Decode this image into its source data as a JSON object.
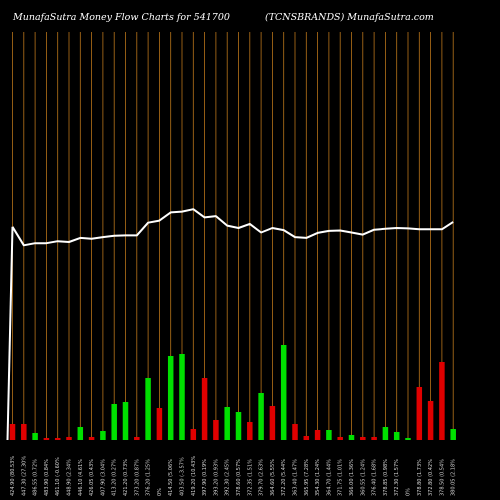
{
  "header": {
    "title_left": "MunafaSutra  Money Flow  Charts for 541700",
    "title_right": "(TCNSBRANDS) MunafaSutra.com"
  },
  "colors": {
    "background": "#000000",
    "grid": "#b8741a",
    "line": "#ffffff",
    "bar_up": "#00e000",
    "bar_down": "#e00000",
    "label": "#d8d8d8"
  },
  "chart_data": {
    "type": "bar",
    "title": "MunafaSutra  Money Flow  Charts for 541700",
    "subtitle": "(TCNSBRANDS) MunafaSutra.com",
    "grid": "vertical",
    "categories": [
      "424.90 (80.53%",
      "447.30 (27.30%",
      "486.55 (0.72%",
      "483.90 (0.84%",
      "461.10 (-0.60%",
      "448.90 (2.34%",
      "446.10 (4.61%",
      "426.05 (0.43%",
      "407.90 (3.04%",
      "413.20 (0.27%",
      "421.20 (0.73%",
      "373.20 (0.87%",
      "376.20 (1.25%",
      "0%",
      "414.50 (5.06%",
      "403.50 (-3.57%",
      "419.20 (10.43%",
      "397.90 (0.19%",
      "393.20 (0.93%",
      "392.30 (2.45%",
      "378.60 (0.57%",
      "372.35 (1.51%",
      "379.70 (2.63%",
      "364.60 (5.55%",
      "372.20 (5.44%",
      "363.40 (1.47%",
      "365.95 (7.28%",
      "354.30 (1.24%",
      "364.70 (1.44%",
      "371.75 (1.01%",
      "366.00 (1.36%",
      "360.55 (1.24%",
      "376.40 (1.68%",
      "378.85 (0.98%",
      "372.30 (1.57%",
      "0%",
      "378.80 (1.73%",
      "372.80 (0.42%",
      "378.50 (0.54%",
      "380.05 (2.18%"
    ],
    "series": [
      {
        "kind": "bar",
        "values": [
          16,
          16,
          7,
          2,
          2,
          3,
          13,
          3,
          9,
          36,
          38,
          3,
          62,
          32,
          84,
          86,
          11,
          62,
          20,
          33,
          28,
          18,
          47,
          34,
          95,
          16,
          4,
          10,
          10,
          3,
          5,
          3,
          3,
          13,
          8,
          2,
          53,
          39,
          78,
          11
        ],
        "directions": [
          "down",
          "down",
          "up",
          "down",
          "down",
          "down",
          "up",
          "down",
          "up",
          "up",
          "up",
          "down",
          "up",
          "down",
          "up",
          "up",
          "down",
          "down",
          "down",
          "up",
          "up",
          "down",
          "up",
          "down",
          "up",
          "down",
          "down",
          "down",
          "up",
          "down",
          "up",
          "down",
          "down",
          "up",
          "up",
          "up",
          "down",
          "down",
          "down",
          "up"
        ]
      },
      {
        "kind": "line",
        "values": [
          52,
          47.5,
          48,
          48,
          48.5,
          48.3,
          49.3,
          49.1,
          49.5,
          49.8,
          49.9,
          49.9,
          53,
          53.5,
          55.5,
          55.7,
          56.3,
          54.3,
          54.6,
          52.3,
          51.7,
          52.7,
          50.6,
          51.7,
          51.2,
          49.5,
          49.3,
          50.5,
          51,
          51.1,
          50.6,
          50.1,
          51.3,
          51.5,
          51.7,
          51.6,
          51.4,
          51.4,
          51.4,
          53.2
        ]
      }
    ],
    "ylim": [
      0,
      100
    ]
  }
}
